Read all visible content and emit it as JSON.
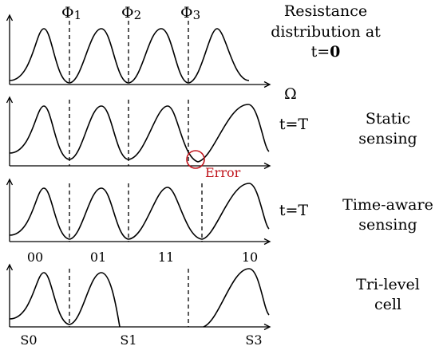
{
  "thresholds": {
    "phi1": {
      "base": "Φ",
      "sub": "1"
    },
    "phi2": {
      "base": "Φ",
      "sub": "2"
    },
    "phi3": {
      "base": "Φ",
      "sub": "3"
    }
  },
  "axis_label": "Ω",
  "panels": [
    {
      "id": "initial",
      "caption_lines": [
        "Resistance",
        "distribution at"
      ],
      "time_prefix": "t=",
      "time_value": "0"
    },
    {
      "id": "static",
      "time_label": "t=T",
      "caption_lines": [
        "Static",
        "sensing"
      ],
      "error_label": "Error"
    },
    {
      "id": "time-aware",
      "time_label": "t=T",
      "caption_lines": [
        "Time-aware",
        "sensing"
      ],
      "state_labels": [
        "00",
        "01",
        "11",
        "10"
      ]
    },
    {
      "id": "tri-level",
      "caption_lines": [
        "Tri-level",
        "cell"
      ],
      "state_labels": [
        "S0",
        "S1",
        "S3"
      ]
    }
  ],
  "colors": {
    "ink": "#000000",
    "error": "#c0141c"
  }
}
